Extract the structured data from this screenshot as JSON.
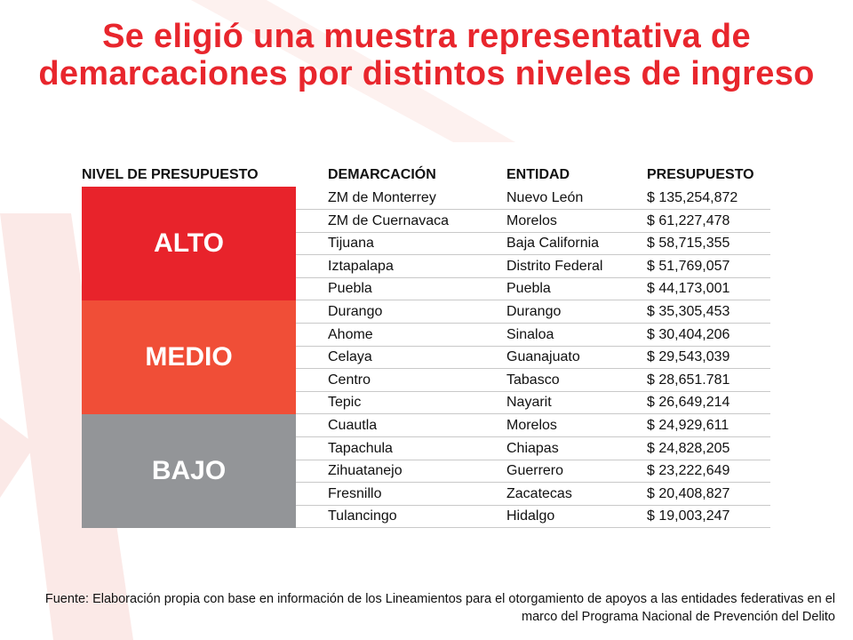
{
  "slide": {
    "title": "Se eligió una muestra representativa de demarcaciones por distintos niveles de ingreso",
    "source": "Fuente: Elaboración propia con base en información de los Lineamientos para el otorgamiento de apoyos a las entidades federativas en el marco del Programa Nacional de Prevención del Delito"
  },
  "chart_data": {
    "type": "table",
    "columns": [
      "NIVEL DE PRESUPUESTO",
      "DEMARCACIÓN",
      "ENTIDAD",
      "PRESUPUESTO"
    ],
    "groups": [
      {
        "level": "ALTO",
        "color": "#e8232b",
        "rows": [
          {
            "demarcacion": "ZM de Monterrey",
            "entidad": "Nuevo León",
            "presupuesto": "$ 135,254,872"
          },
          {
            "demarcacion": "ZM de Cuernavaca",
            "entidad": "Morelos",
            "presupuesto": "$ 61,227,478"
          },
          {
            "demarcacion": "Tijuana",
            "entidad": "Baja California",
            "presupuesto": "$ 58,715,355"
          },
          {
            "demarcacion": "Iztapalapa",
            "entidad": "Distrito Federal",
            "presupuesto": "$ 51,769,057"
          },
          {
            "demarcacion": "Puebla",
            "entidad": "Puebla",
            "presupuesto": "$ 44,173,001"
          }
        ]
      },
      {
        "level": "MEDIO",
        "color": "#f04e37",
        "rows": [
          {
            "demarcacion": "Durango",
            "entidad": "Durango",
            "presupuesto": "$ 35,305,453"
          },
          {
            "demarcacion": "Ahome",
            "entidad": "Sinaloa",
            "presupuesto": "$ 30,404,206"
          },
          {
            "demarcacion": "Celaya",
            "entidad": "Guanajuato",
            "presupuesto": "$ 29,543,039"
          },
          {
            "demarcacion": "Centro",
            "entidad": "Tabasco",
            "presupuesto": "$ 28,651.781"
          },
          {
            "demarcacion": "Tepic",
            "entidad": "Nayarit",
            "presupuesto": "$ 26,649,214"
          }
        ]
      },
      {
        "level": "BAJO",
        "color": "#939598",
        "rows": [
          {
            "demarcacion": "Cuautla",
            "entidad": "Morelos",
            "presupuesto": "$ 24,929,611"
          },
          {
            "demarcacion": "Tapachula",
            "entidad": "Chiapas",
            "presupuesto": "$ 24,828,205"
          },
          {
            "demarcacion": "Zihuatanejo",
            "entidad": "Guerrero",
            "presupuesto": "$ 23,222,649"
          },
          {
            "demarcacion": "Fresnillo",
            "entidad": "Zacatecas",
            "presupuesto": "$ 20,408,827"
          },
          {
            "demarcacion": "Tulancingo",
            "entidad": "Hidalgo",
            "presupuesto": "$ 19,003,247"
          }
        ]
      }
    ]
  }
}
